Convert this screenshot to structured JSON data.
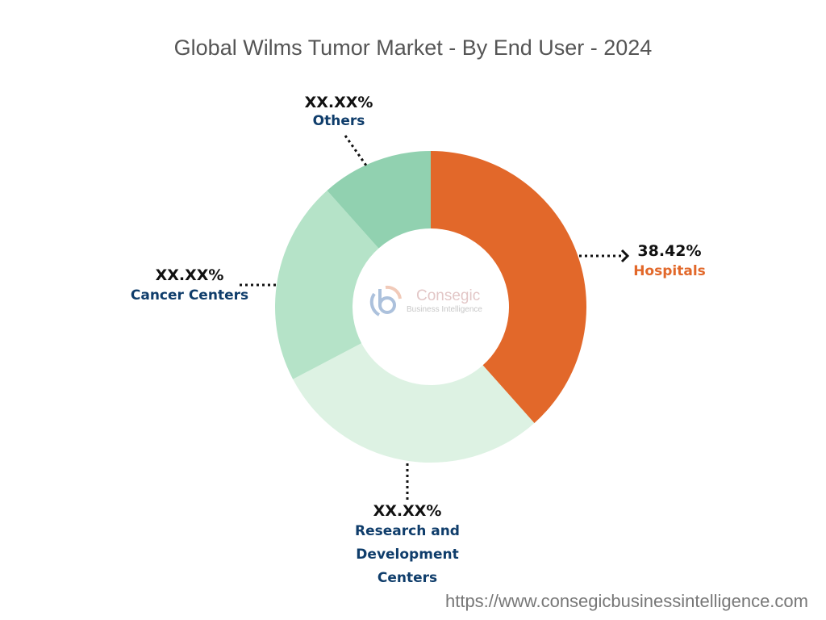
{
  "chart_data": {
    "type": "pie",
    "variant": "donut",
    "title": "Global Wilms Tumor Market - By End User - 2024",
    "slices": [
      {
        "name": "Hospitals",
        "label": "38.42%",
        "value": 38.42,
        "color": "#E2682A"
      },
      {
        "name": "Research and Development Centers",
        "label": "XX.XX%",
        "value": 28.9,
        "color": "#DDF2E3"
      },
      {
        "name": "Cancer Centers",
        "label": "XX.XX%",
        "value": 21.1,
        "color": "#B5E3C8"
      },
      {
        "name": "Others",
        "label": "XX.XX%",
        "value": 11.6,
        "color": "#91D1B0"
      }
    ]
  },
  "watermark": {
    "name": "Consegic",
    "sub": "Business Intelligence"
  },
  "footer_url": "https://www.consegicbusinessintelligence.com"
}
